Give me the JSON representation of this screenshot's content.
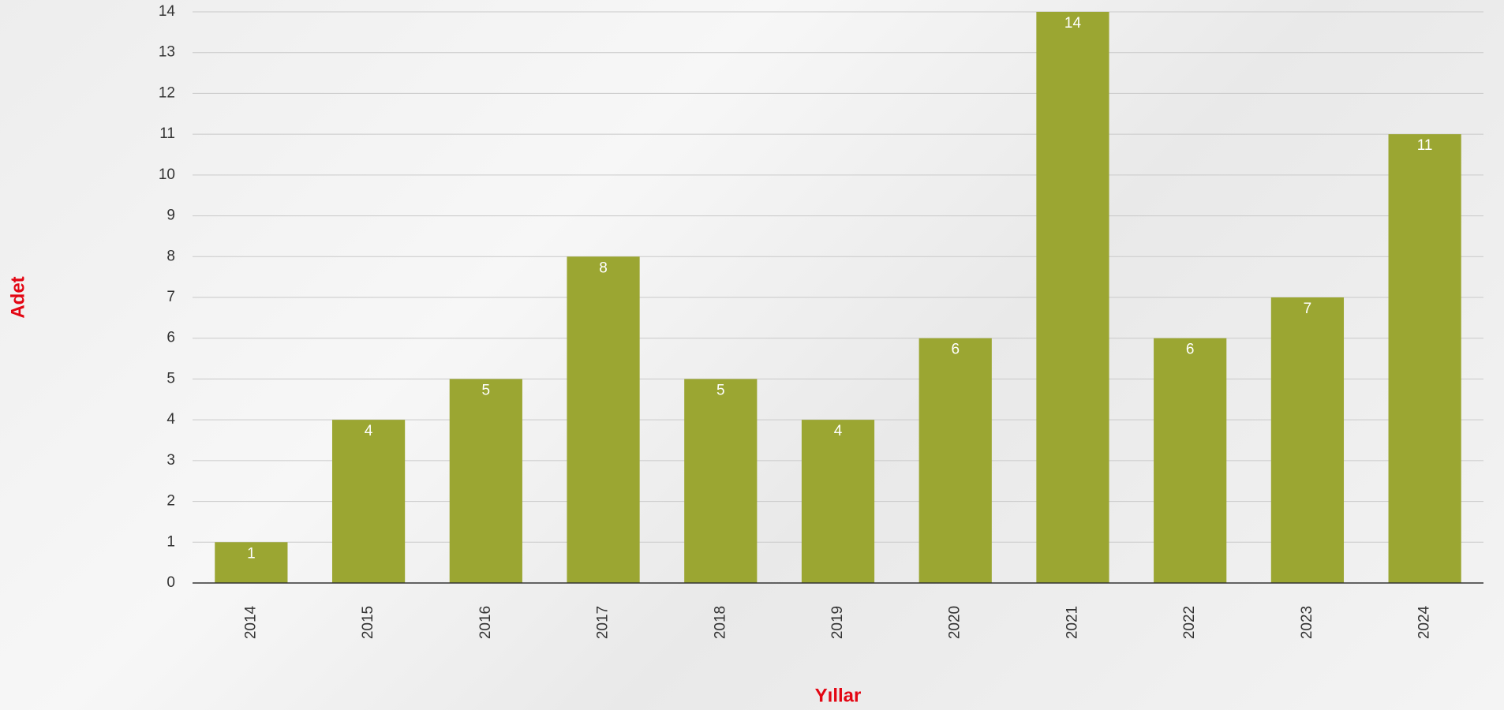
{
  "chart_data": {
    "type": "bar",
    "x_label": "Yıllar",
    "y_label": "Adet",
    "categories": [
      "2014",
      "2015",
      "2016",
      "2017",
      "2018",
      "2019",
      "2020",
      "2021",
      "2022",
      "2023",
      "2024"
    ],
    "values": [
      1,
      4,
      5,
      8,
      5,
      4,
      6,
      14,
      6,
      7,
      11
    ],
    "color": "#9ba632",
    "ylim": [
      0,
      14
    ],
    "yticks": [
      0,
      1,
      2,
      3,
      4,
      5,
      6,
      7,
      8,
      9,
      10,
      11,
      12,
      13,
      14
    ],
    "grid": true
  }
}
